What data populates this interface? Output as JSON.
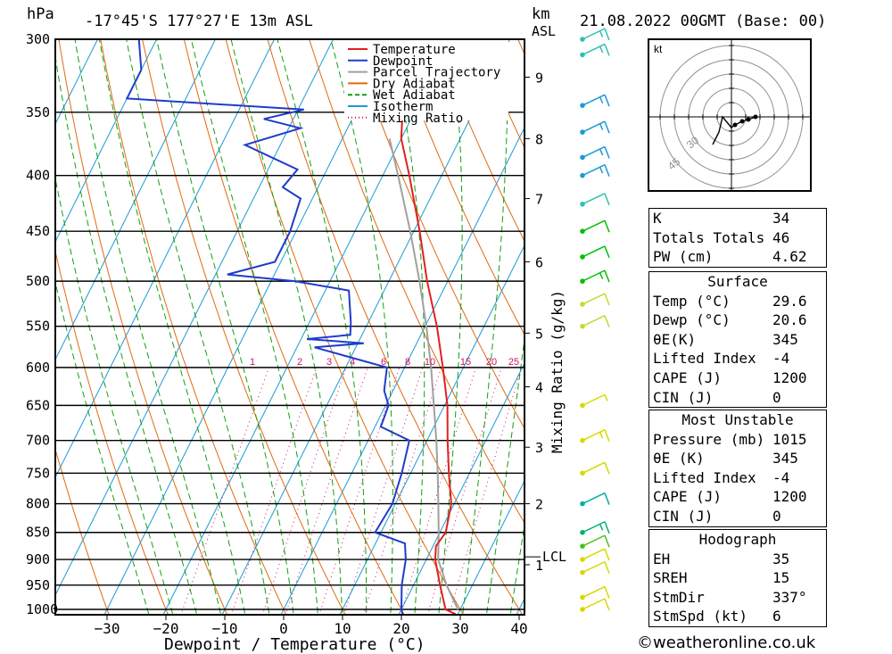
{
  "header": {
    "hpa_label": "hPa",
    "location": "-17°45'S  177°27'E  13m  ASL",
    "km_label": "km",
    "asl_label": "ASL",
    "datetime": "21.08.2022  00GMT  (Base: 00)"
  },
  "chart_data": {
    "type": "skew-t log-p",
    "xlabel": "Dewpoint / Temperature (°C)",
    "ylabel_right": "Mixing Ratio (g/kg)",
    "x_ticks": [
      -30,
      -20,
      -10,
      0,
      10,
      20,
      30,
      40
    ],
    "pressure_levels": [
      300,
      350,
      400,
      450,
      500,
      550,
      600,
      650,
      700,
      750,
      800,
      850,
      900,
      950,
      1000
    ],
    "km_ticks": [
      {
        "km": "1",
        "p": 910
      },
      {
        "km": "2",
        "p": 800
      },
      {
        "km": "3",
        "p": 710
      },
      {
        "km": "4",
        "p": 625
      },
      {
        "km": "5",
        "p": 558
      },
      {
        "km": "6",
        "p": 480
      },
      {
        "km": "7",
        "p": 420
      },
      {
        "km": "8",
        "p": 370
      },
      {
        "km": "9",
        "p": 325
      }
    ],
    "lcl_label": "LCL",
    "lcl_pressure": 895,
    "mixing_ratio_labels": [
      "1",
      "2",
      "3",
      "4",
      "6",
      "8",
      "10",
      "15",
      "20",
      "25"
    ],
    "legend": [
      "Temperature",
      "Dewpoint",
      "Parcel Trajectory",
      "Dry Adiabat",
      "Wet Adiabat",
      "Isotherm",
      "Mixing Ratio"
    ],
    "colors": {
      "temperature": "#e02020",
      "dewpoint": "#1f3ccc",
      "parcel": "#a0a0a0",
      "dry_adiabat": "#e06a10",
      "wet_adiabat": "#10a010",
      "isotherm": "#1a9ad8",
      "mixing_ratio": "#d0106a"
    },
    "temperature_profile": [
      {
        "p": 1010,
        "t": 29.6
      },
      {
        "p": 1000,
        "t": 27.5
      },
      {
        "p": 950,
        "t": 24.5
      },
      {
        "p": 900,
        "t": 21.5
      },
      {
        "p": 875,
        "t": 20.5
      },
      {
        "p": 850,
        "t": 21.0
      },
      {
        "p": 800,
        "t": 19.5
      },
      {
        "p": 750,
        "t": 16.5
      },
      {
        "p": 700,
        "t": 13.5
      },
      {
        "p": 650,
        "t": 10.5
      },
      {
        "p": 600,
        "t": 6.5
      },
      {
        "p": 550,
        "t": 2.0
      },
      {
        "p": 500,
        "t": -3.5
      },
      {
        "p": 450,
        "t": -9.0
      },
      {
        "p": 400,
        "t": -15.5
      },
      {
        "p": 370,
        "t": -20.0
      },
      {
        "p": 350,
        "t": -22.0
      },
      {
        "p": 330,
        "t": -26.0
      },
      {
        "p": 300,
        "t": -32.0
      }
    ],
    "dewpoint_profile": [
      {
        "p": 1010,
        "t": 20.6
      },
      {
        "p": 1000,
        "t": 20.0
      },
      {
        "p": 950,
        "t": 18.0
      },
      {
        "p": 900,
        "t": 16.5
      },
      {
        "p": 870,
        "t": 15.0
      },
      {
        "p": 850,
        "t": 9.0
      },
      {
        "p": 800,
        "t": 9.5
      },
      {
        "p": 750,
        "t": 8.5
      },
      {
        "p": 700,
        "t": 7.0
      },
      {
        "p": 680,
        "t": 1.0
      },
      {
        "p": 650,
        "t": 0.5
      },
      {
        "p": 630,
        "t": -1.5
      },
      {
        "p": 600,
        "t": -3.0
      },
      {
        "p": 575,
        "t": -17.0
      },
      {
        "p": 570,
        "t": -9.0
      },
      {
        "p": 565,
        "t": -19.0
      },
      {
        "p": 560,
        "t": -12.0
      },
      {
        "p": 545,
        "t": -13.0
      },
      {
        "p": 510,
        "t": -16.0
      },
      {
        "p": 500,
        "t": -26.0
      },
      {
        "p": 493,
        "t": -38.0
      },
      {
        "p": 480,
        "t": -31.0
      },
      {
        "p": 450,
        "t": -31.0
      },
      {
        "p": 420,
        "t": -32.0
      },
      {
        "p": 410,
        "t": -36.0
      },
      {
        "p": 395,
        "t": -35.0
      },
      {
        "p": 375,
        "t": -46.0
      },
      {
        "p": 362,
        "t": -38.0
      },
      {
        "p": 355,
        "t": -45.0
      },
      {
        "p": 348,
        "t": -39.0
      },
      {
        "p": 340,
        "t": -70.0
      },
      {
        "p": 320,
        "t": -70.0
      },
      {
        "p": 300,
        "t": -73.0
      }
    ],
    "parcel_profile": [
      {
        "p": 1000,
        "t": 29.6
      },
      {
        "p": 950,
        "t": 25.6
      },
      {
        "p": 900,
        "t": 22.0
      },
      {
        "p": 850,
        "t": 19.8
      },
      {
        "p": 800,
        "t": 17.3
      },
      {
        "p": 750,
        "t": 14.6
      },
      {
        "p": 700,
        "t": 11.6
      },
      {
        "p": 650,
        "t": 8.2
      },
      {
        "p": 600,
        "t": 4.5
      },
      {
        "p": 550,
        "t": 0.2
      },
      {
        "p": 500,
        "t": -4.8
      },
      {
        "p": 450,
        "t": -10.6
      },
      {
        "p": 400,
        "t": -17.4
      },
      {
        "p": 370,
        "t": -22.0
      }
    ],
    "wind_barbs": [
      {
        "p": 1000,
        "spd": 10,
        "color": "#d8d800"
      },
      {
        "p": 975,
        "spd": 10,
        "color": "#d8d800"
      },
      {
        "p": 925,
        "spd": 10,
        "color": "#d8d800"
      },
      {
        "p": 900,
        "spd": 10,
        "color": "#d8d800"
      },
      {
        "p": 875,
        "spd": 10,
        "color": "#48c018"
      },
      {
        "p": 850,
        "spd": 15,
        "color": "#00b070"
      },
      {
        "p": 800,
        "spd": 10,
        "color": "#00b0a0"
      },
      {
        "p": 750,
        "spd": 10,
        "color": "#d8d800"
      },
      {
        "p": 700,
        "spd": 15,
        "color": "#d8d800"
      },
      {
        "p": 650,
        "spd": 5,
        "color": "#d8d800"
      },
      {
        "p": 550,
        "spd": 10,
        "color": "#b8e030"
      },
      {
        "p": 525,
        "spd": 10,
        "color": "#b8e030"
      },
      {
        "p": 500,
        "spd": 15,
        "color": "#00c000"
      },
      {
        "p": 475,
        "spd": 10,
        "color": "#00c000"
      },
      {
        "p": 450,
        "spd": 10,
        "color": "#00c000"
      },
      {
        "p": 425,
        "spd": 10,
        "color": "#30c0b0"
      },
      {
        "p": 400,
        "spd": 15,
        "color": "#1a9ad8"
      },
      {
        "p": 385,
        "spd": 15,
        "color": "#1a9ad8"
      },
      {
        "p": 365,
        "spd": 15,
        "color": "#1a9ad8"
      },
      {
        "p": 345,
        "spd": 15,
        "color": "#1a9ad8"
      },
      {
        "p": 310,
        "spd": 15,
        "color": "#30c0b0"
      },
      {
        "p": 300,
        "spd": 15,
        "color": "#30c0b0"
      }
    ]
  },
  "hodograph": {
    "unit_label": "kt",
    "ring_labels": [
      "30",
      "45"
    ]
  },
  "indices": [
    {
      "label": "K",
      "value": "34"
    },
    {
      "label": "Totals Totals",
      "value": "46"
    },
    {
      "label": "PW (cm)",
      "value": "4.62"
    }
  ],
  "surface": {
    "title": "Surface",
    "rows": [
      {
        "label": "Temp (°C)",
        "value": "29.6"
      },
      {
        "label": "Dewp (°C)",
        "value": "20.6"
      },
      {
        "label": "θE(K)",
        "value": "345"
      },
      {
        "label": "Lifted Index",
        "value": "-4"
      },
      {
        "label": "CAPE (J)",
        "value": "1200"
      },
      {
        "label": "CIN (J)",
        "value": "0"
      }
    ]
  },
  "most_unstable": {
    "title": "Most Unstable",
    "rows": [
      {
        "label": "Pressure (mb)",
        "value": "1015"
      },
      {
        "label": "θE (K)",
        "value": "345"
      },
      {
        "label": "Lifted Index",
        "value": "-4"
      },
      {
        "label": "CAPE (J)",
        "value": "1200"
      },
      {
        "label": "CIN (J)",
        "value": "0"
      }
    ]
  },
  "hodograph_table": {
    "title": "Hodograph",
    "rows": [
      {
        "label": "EH",
        "value": "35"
      },
      {
        "label": "SREH",
        "value": "15"
      },
      {
        "label": "StmDir",
        "value": "337°"
      },
      {
        "label": "StmSpd (kt)",
        "value": "6"
      }
    ]
  },
  "credit": "©weatheronline.co.uk"
}
